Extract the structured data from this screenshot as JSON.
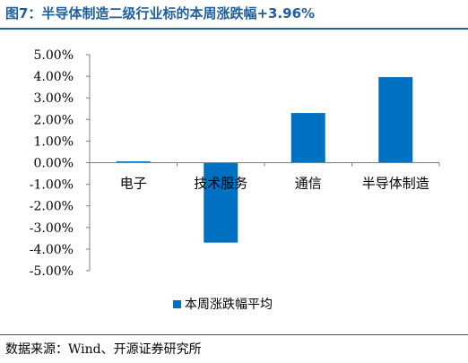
{
  "title": "图7：半导体制造二级行业标的本周涨跌幅+3.96%",
  "source": "数据来源：Wind、开源证券研究所",
  "colors": {
    "accent": "#1F5F9F",
    "bar": "#0070C0"
  },
  "chart_data": {
    "type": "bar",
    "categories": [
      "电子",
      "技术服务",
      "通信",
      "半导体制造"
    ],
    "series": [
      {
        "name": "本周涨跌幅平均",
        "values": [
          0.06,
          -3.7,
          2.3,
          3.96
        ]
      }
    ],
    "ylim": [
      -5,
      5
    ],
    "ytick_step": 1,
    "ytick_labels": [
      "5.00%",
      "4.00%",
      "3.00%",
      "2.00%",
      "1.00%",
      "0.00%",
      "-1.00%",
      "-2.00%",
      "-3.00%",
      "-4.00%",
      "-5.00%"
    ],
    "legend_position": "bottom",
    "grid": false
  }
}
